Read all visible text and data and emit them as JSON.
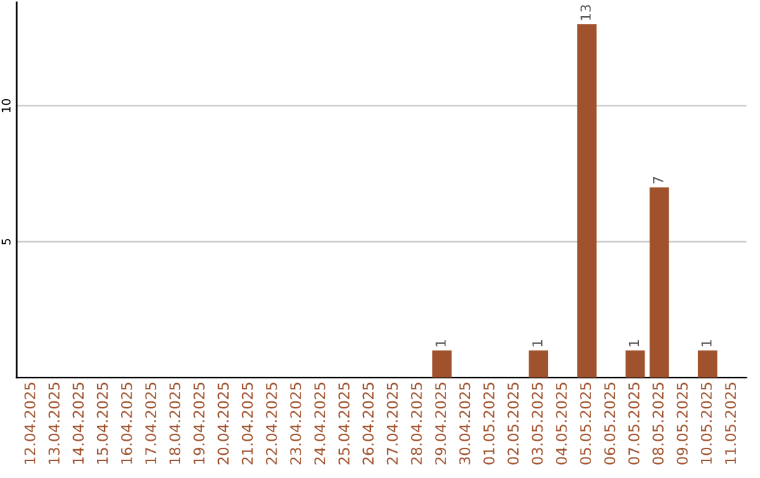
{
  "chart_data": {
    "type": "bar",
    "categories": [
      "12.04.2025",
      "13.04.2025",
      "14.04.2025",
      "15.04.2025",
      "16.04.2025",
      "17.04.2025",
      "18.04.2025",
      "19.04.2025",
      "20.04.2025",
      "21.04.2025",
      "22.04.2025",
      "23.04.2025",
      "24.04.2025",
      "25.04.2025",
      "26.04.2025",
      "27.04.2025",
      "28.04.2025",
      "29.04.2025",
      "30.04.2025",
      "01.05.2025",
      "02.05.2025",
      "03.05.2025",
      "04.05.2025",
      "05.05.2025",
      "06.05.2025",
      "07.05.2025",
      "08.05.2025",
      "09.05.2025",
      "10.05.2025",
      "11.05.2025"
    ],
    "values": [
      0,
      0,
      0,
      0,
      0,
      0,
      0,
      0,
      0,
      0,
      0,
      0,
      0,
      0,
      0,
      0,
      0,
      1,
      0,
      0,
      0,
      1,
      0,
      13,
      0,
      1,
      7,
      0,
      1,
      0
    ],
    "value_labels": [
      null,
      null,
      null,
      null,
      null,
      null,
      null,
      null,
      null,
      null,
      null,
      null,
      null,
      null,
      null,
      null,
      null,
      "1",
      null,
      null,
      null,
      "1",
      null,
      "13",
      null,
      "1",
      "7",
      null,
      "1",
      null
    ],
    "color": "#a0522d",
    "ylim": [
      0,
      13.8
    ],
    "yticks": [
      5,
      10
    ],
    "grid": "y"
  }
}
